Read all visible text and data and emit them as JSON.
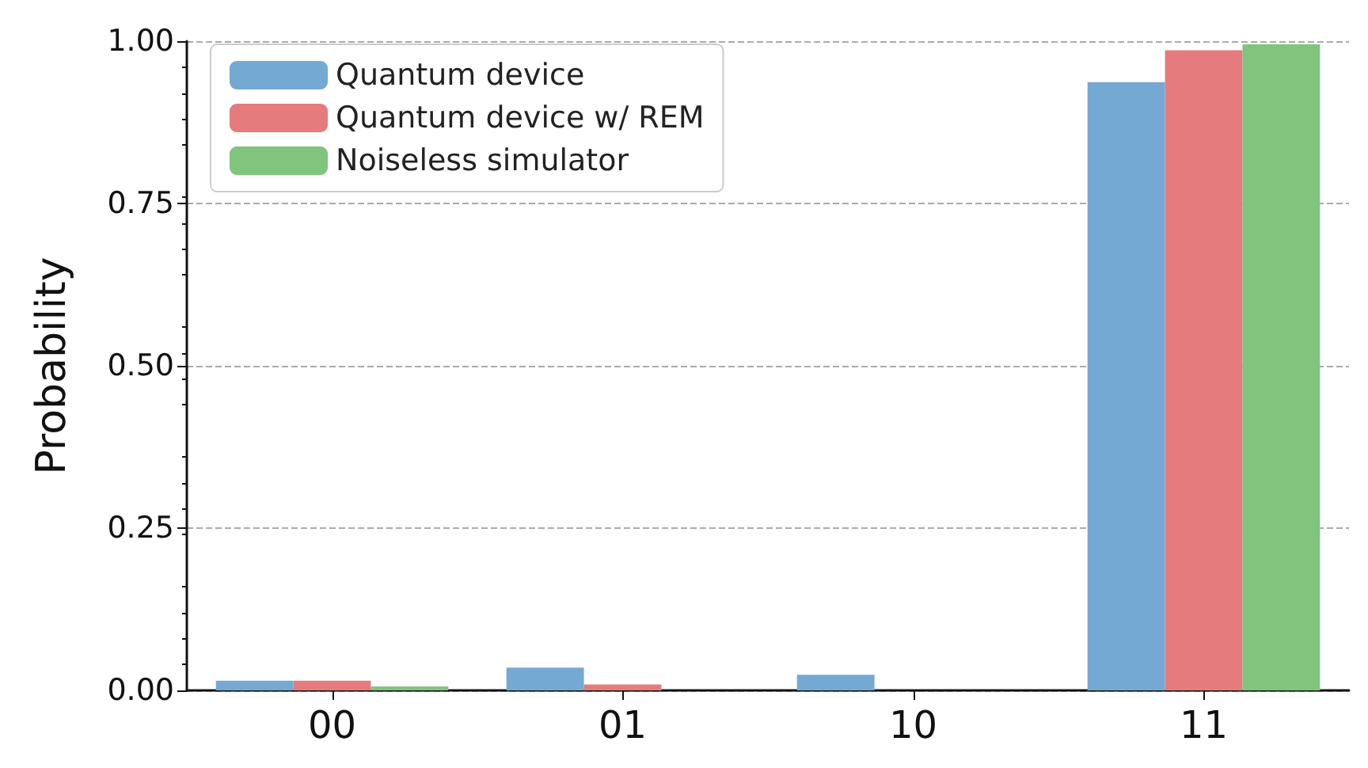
{
  "chart_data": {
    "type": "bar",
    "ylabel": "Probability",
    "categories": [
      "00",
      "01",
      "10",
      "11"
    ],
    "series": [
      {
        "name": "Quantum device",
        "color": "#74a9d3",
        "values": [
          0.015,
          0.035,
          0.024,
          0.937
        ]
      },
      {
        "name": "Quantum device w/ REM",
        "color": "#e57b7d",
        "values": [
          0.015,
          0.009,
          0,
          0.986
        ]
      },
      {
        "name": "Noiseless simulator",
        "color": "#80c47d",
        "values": [
          0.006,
          0,
          0,
          0.995
        ]
      }
    ],
    "ylim": [
      0,
      1
    ],
    "yticks": [
      {
        "value": 0,
        "label": "0.00"
      },
      {
        "value": 0.25,
        "label": "0.25"
      },
      {
        "value": 0.5,
        "label": "0.50"
      },
      {
        "value": 0.75,
        "label": "0.75"
      },
      {
        "value": 1,
        "label": "1.00"
      }
    ],
    "grid": "y",
    "legend": "top left"
  }
}
